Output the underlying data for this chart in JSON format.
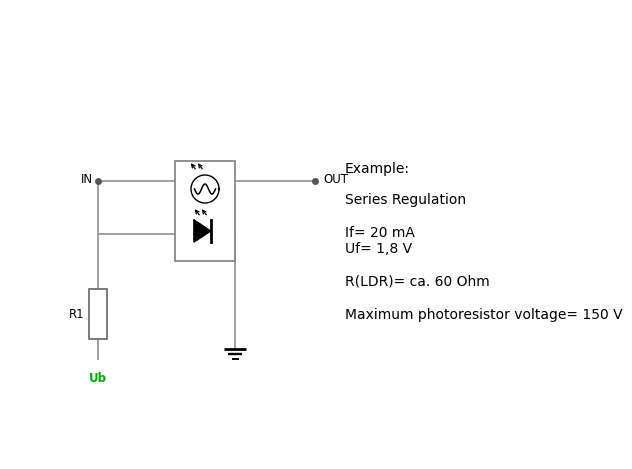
{
  "background_color": "#ffffff",
  "line_color": "#999999",
  "text_color": "#000000",
  "green_color": "#00aa00",
  "annotations": {
    "IN": "IN",
    "OUT": "OUT",
    "R1": "R1",
    "Ub": "Ub",
    "example": "Example:",
    "series": "Series Regulation",
    "if_line": "If= 20 mA",
    "uf_line": "Uf= 1,8 V",
    "rldr": "R(LDR)= ca. 60 Ohm",
    "maxvolt": "Maximum photoresistor voltage= 150 V"
  },
  "fontsize_main": 10,
  "fontsize_label": 8.5
}
